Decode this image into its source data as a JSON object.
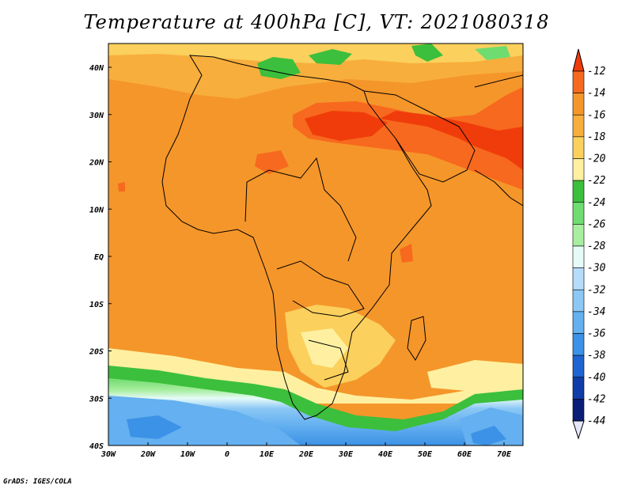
{
  "title": "Temperature at 400hPa [C], VT: 2021080318",
  "credit": "GrADS: IGES/COLA",
  "map": {
    "region": "Africa",
    "variable": "Temperature at 400hPa",
    "units": "C",
    "valid_time": "2021080318",
    "lat_labels": [
      "40N",
      "30N",
      "20N",
      "10N",
      "EQ",
      "10S",
      "20S",
      "30S",
      "40S"
    ],
    "lon_labels": [
      "30W",
      "20W",
      "10W",
      "0",
      "10E",
      "20E",
      "30E",
      "40E",
      "50E",
      "60E",
      "70E"
    ]
  },
  "colorbar": {
    "levels": [
      "-12",
      "-14",
      "-16",
      "-18",
      "-20",
      "-22",
      "-24",
      "-26",
      "-28",
      "-30",
      "-32",
      "-34",
      "-36",
      "-38",
      "-40",
      "-42",
      "-44"
    ],
    "colors": [
      "#f03c0a",
      "#f7691e",
      "#f5962a",
      "#f8ae3c",
      "#fbd05d",
      "#fef0a0",
      "#3cbf3c",
      "#6fdc6f",
      "#a8eea0",
      "#e6fbf8",
      "#b6dcfb",
      "#8cc8f5",
      "#64b0f0",
      "#3c92e6",
      "#1e64d2",
      "#0f3ca8",
      "#0a1e78"
    ]
  }
}
